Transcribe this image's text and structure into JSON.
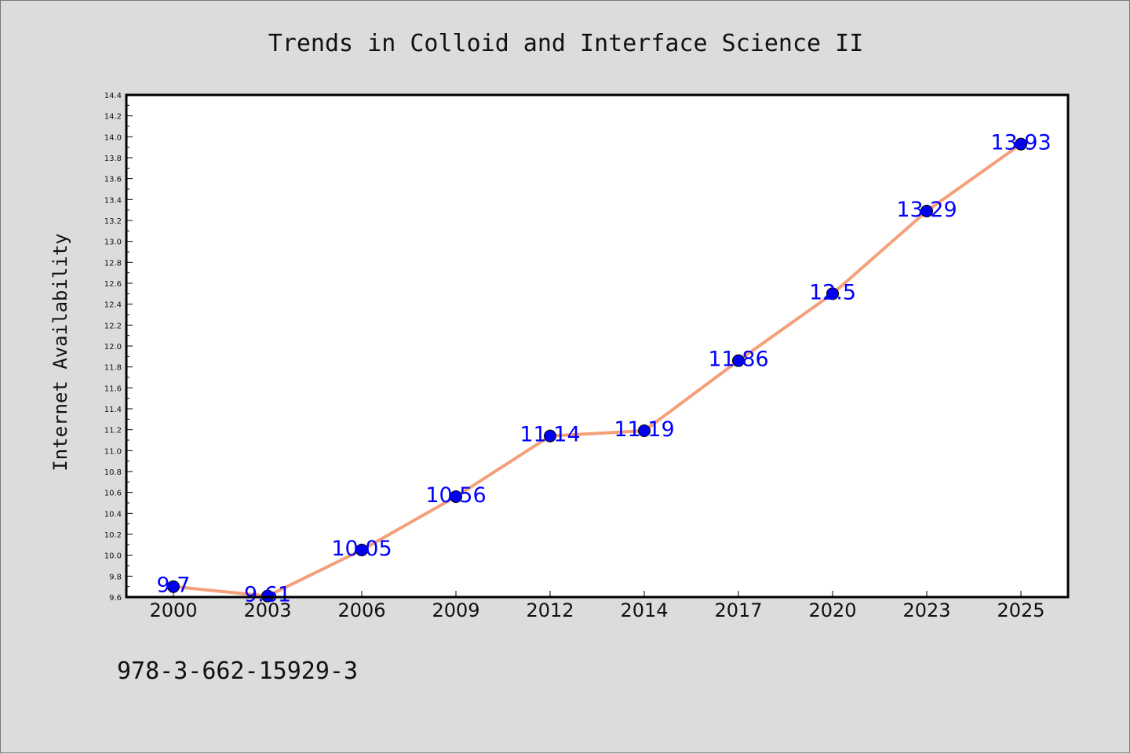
{
  "chart_data": {
    "type": "line",
    "title": "Trends in Colloid and Interface Science II",
    "ylabel": "Internet Availability",
    "xlabel": "",
    "categories": [
      "2000",
      "2003",
      "2006",
      "2009",
      "2012",
      "2014",
      "2017",
      "2020",
      "2023",
      "2025"
    ],
    "series": [
      {
        "values": [
          9.7,
          9.61,
          10.05,
          10.56,
          11.14,
          11.19,
          11.86,
          12.5,
          13.29,
          13.93
        ],
        "data_labels": [
          "9.7",
          "9.61",
          "10.05",
          "10.56",
          "11.14",
          "11.19",
          "11.86",
          "12.5",
          "13.29",
          "13.93"
        ],
        "line_color": "#f4a07a",
        "marker_color": "#0000ee"
      }
    ],
    "ylim": [
      9.6,
      14.4
    ],
    "ytick_step": 0.2,
    "grid": false,
    "legend": "none"
  },
  "footer": {
    "text": "978-3-662-15929-3"
  },
  "colors": {
    "background": "#dcdcdc",
    "plot_background": "#ffffff",
    "label_color": "#0000ff"
  }
}
